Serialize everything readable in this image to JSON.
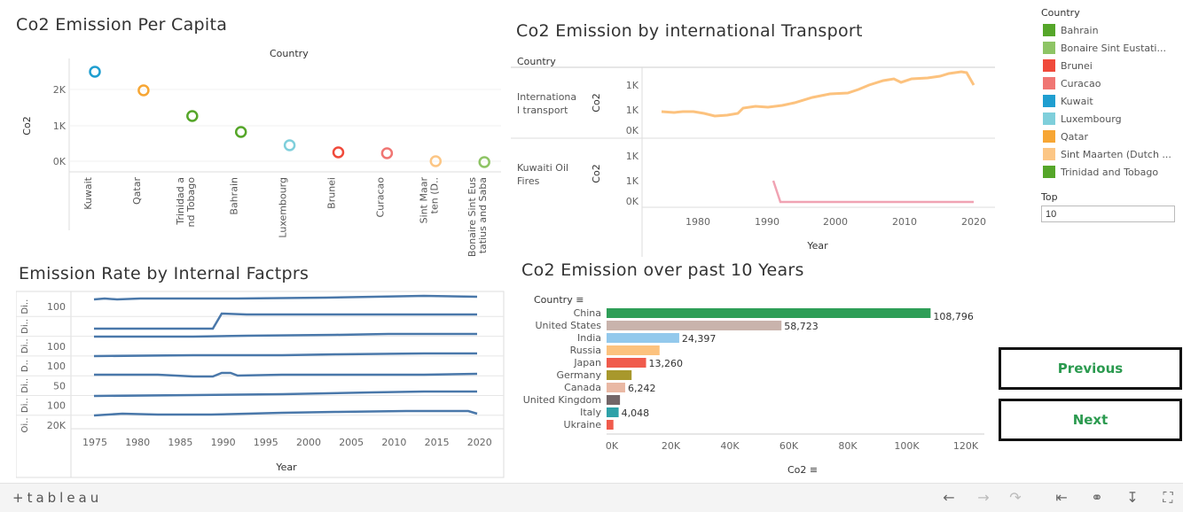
{
  "per_capita": {
    "title": "Co2 Emission Per Capita",
    "header": "Country",
    "y_axis_label": "Co2",
    "y_ticks": [
      "2K",
      "1K",
      "0K"
    ],
    "countries": [
      "Kuwait",
      "Qatar",
      "Trinidad and Tobago",
      "Bahrain",
      "Luxembourg",
      "Brunei",
      "Curacao",
      "Sint Maarten (D..",
      "Bonaire Sint Eustatius and Saba"
    ],
    "colors": [
      "#1f9ed0",
      "#f7a634",
      "#55a629",
      "#55a629",
      "#7fcfdb",
      "#f04a3b",
      "#f07673",
      "#fcc685",
      "#8ec465"
    ]
  },
  "transport": {
    "title": "Co2 Emission by international Transport",
    "header": "Country",
    "rows": [
      {
        "label": "International transport",
        "y_ticks": [
          "1K",
          "1K",
          "0K"
        ],
        "y_axis": "Co2"
      },
      {
        "label": "Kuwaiti Oil Fires",
        "y_ticks": [
          "1K",
          "1K",
          "0K"
        ],
        "y_axis": "Co2"
      }
    ],
    "x_ticks": [
      "1980",
      "1990",
      "2000",
      "2010",
      "2020"
    ],
    "x_label": "Year"
  },
  "internal": {
    "title": "Emission Rate by Internal Factprs",
    "row_labels": [
      "Di..",
      "Di..",
      "Di..",
      "D..",
      "Di..",
      "Di..",
      "Oi.."
    ],
    "y_ticks": [
      "100",
      "",
      "100",
      "100",
      "50",
      "100",
      "20K"
    ],
    "x_ticks": [
      "1975",
      "1980",
      "1985",
      "1990",
      "1995",
      "2000",
      "2005",
      "2010",
      "2015",
      "2020"
    ],
    "x_label": "Year"
  },
  "chart_data": [
    {
      "type": "bar",
      "title": "Co2 Emission over past 10 Years",
      "ylabel": "Country",
      "xlabel": "Co2",
      "categories": [
        "China",
        "United States",
        "India",
        "Russia",
        "Japan",
        "Germany",
        "Canada",
        "United Kingdom",
        "Italy",
        "Ukraine"
      ],
      "values": [
        108796,
        58723,
        24397,
        17800,
        13260,
        8400,
        6242,
        4500,
        4048,
        2300
      ],
      "data_labels": [
        "108,796",
        "58,723",
        "24,397",
        "",
        "13,260",
        "",
        "6,242",
        "",
        "4,048",
        ""
      ],
      "colors": [
        "#2e9e57",
        "#c9b3ac",
        "#93c9ec",
        "#fcc27e",
        "#f05b4c",
        "#a8982c",
        "#e9b8a4",
        "#736668",
        "#2ea1a8",
        "#f05b4c"
      ],
      "x_ticks": [
        "0K",
        "20K",
        "40K",
        "60K",
        "80K",
        "100K",
        "120K"
      ],
      "xlim": [
        0,
        120000
      ]
    }
  ],
  "legend": {
    "title": "Country",
    "items": [
      {
        "label": "Bahrain",
        "color": "#55a629"
      },
      {
        "label": "Bonaire Sint Eustati...",
        "color": "#8ec465"
      },
      {
        "label": "Brunei",
        "color": "#f04a3b"
      },
      {
        "label": "Curacao",
        "color": "#f07673"
      },
      {
        "label": "Kuwait",
        "color": "#1f9ed0"
      },
      {
        "label": "Luxembourg",
        "color": "#7fcfdb"
      },
      {
        "label": "Qatar",
        "color": "#f7a634"
      },
      {
        "label": "Sint Maarten (Dutch ...",
        "color": "#fcc685"
      },
      {
        "label": "Trinidad and Tobago",
        "color": "#55a629"
      }
    ]
  },
  "filter": {
    "label": "Top",
    "value": "10"
  },
  "buttons": {
    "previous": "Previous",
    "next": "Next"
  },
  "toolbar": {
    "logo": "+tableau"
  }
}
